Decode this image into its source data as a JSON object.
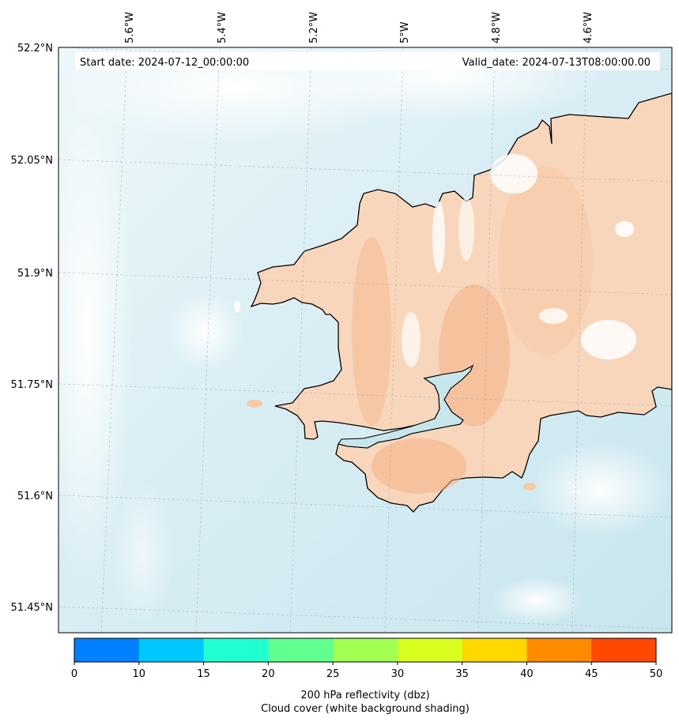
{
  "header": {
    "start_date": "Start date: 2024-07-12_00:00:00",
    "valid_date": "Valid_date: 2024-07-13T08:00:00.00"
  },
  "axes": {
    "lon_labels": [
      "5.6°W",
      "5.4°W",
      "5.2°W",
      "5°W",
      "4.8°W",
      "4.6°W"
    ],
    "lat_labels": [
      "52.2°N",
      "52.05°N",
      "51.9°N",
      "51.75°N",
      "51.6°N",
      "51.45°N"
    ]
  },
  "colorbar": {
    "ticks": [
      "0",
      "10",
      "15",
      "20",
      "25",
      "30",
      "35",
      "40",
      "45",
      "50"
    ],
    "colors": [
      "#0080ff",
      "#00c8ff",
      "#20ffd0",
      "#60ff90",
      "#a0ff50",
      "#d8ff20",
      "#ffd800",
      "#ff8c00",
      "#ff4800"
    ],
    "label_line1": "200 hPa reflectivity (dbz)",
    "label_line2": "Cloud cover (white background shading)"
  },
  "colors": {
    "sea": "#d6ecf2",
    "sea_light": "#eef7fa",
    "land": "#f8d6bb",
    "land_dark": "#f5bb90",
    "coast": "#000000",
    "cloud": "#ffffff"
  }
}
